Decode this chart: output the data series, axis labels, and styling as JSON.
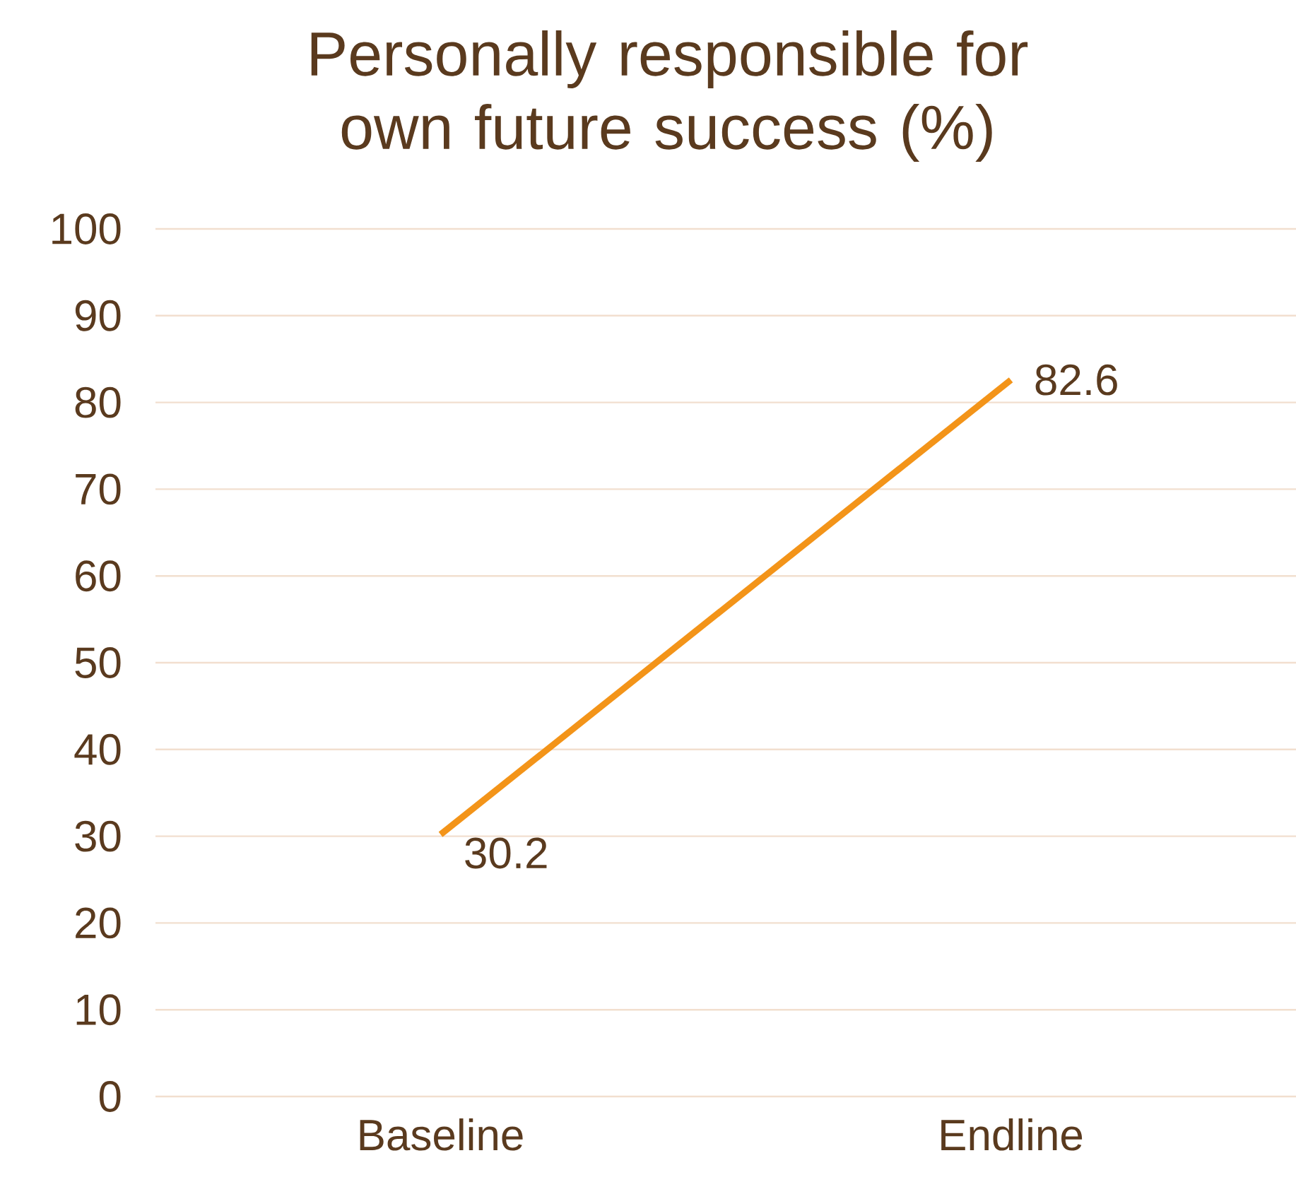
{
  "chart_data": {
    "type": "line",
    "title": "Personally responsible for own future success (%)",
    "categories": [
      "Baseline",
      "Endline"
    ],
    "series": [
      {
        "color": "#f39419",
        "values": [
          30.2,
          82.6
        ]
      }
    ],
    "ylim": [
      0,
      100
    ],
    "yticks": [
      0,
      10,
      20,
      30,
      40,
      50,
      60,
      70,
      80,
      90,
      100
    ],
    "grid": "y",
    "data_labels": true,
    "marker": "none"
  }
}
